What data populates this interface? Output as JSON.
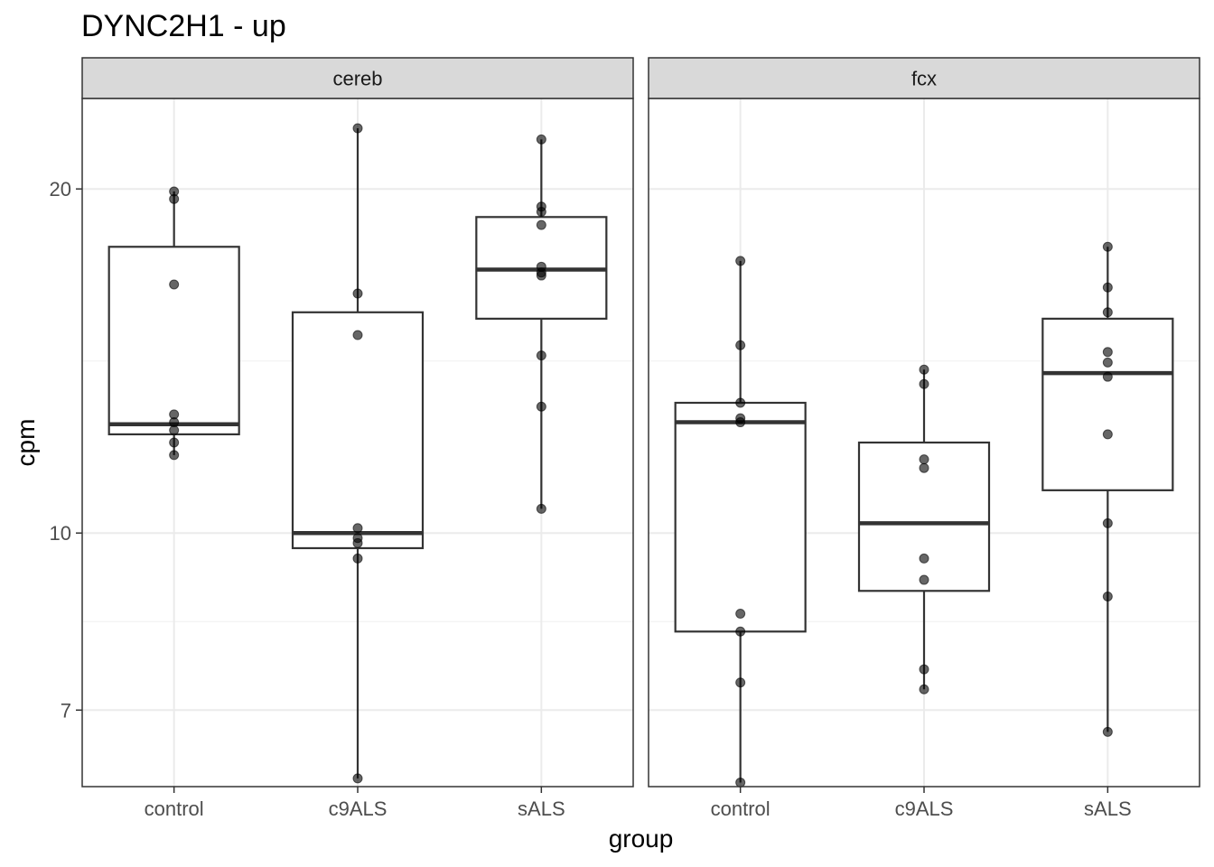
{
  "chart_data": {
    "type": "boxplot",
    "title": "DYNC2H1 - up",
    "xlabel": "group",
    "ylabel": "cpm",
    "y_scale": "log10",
    "ylim": [
      6.0,
      24.0
    ],
    "y_major_ticks": [
      7,
      10,
      20
    ],
    "y_minor_ticks": [
      8.3666,
      14.1421
    ],
    "categories": [
      "control",
      "c9ALS",
      "sALS"
    ],
    "panels": [
      {
        "name": "cereb",
        "groups": [
          {
            "category": "control",
            "min": 11.7,
            "q1": 12.2,
            "median": 12.45,
            "q3": 17.8,
            "max": 19.9,
            "points": [
              19.9,
              19.6,
              16.5,
              12.7,
              12.5,
              12.3,
              12.0,
              11.7
            ]
          },
          {
            "category": "c9ALS",
            "min": 6.1,
            "q1": 9.7,
            "median": 10.0,
            "q3": 15.6,
            "max": 22.6,
            "points": [
              22.6,
              16.2,
              14.9,
              10.1,
              9.9,
              9.8,
              9.5,
              6.1
            ]
          },
          {
            "category": "sALS",
            "min": 10.5,
            "q1": 15.4,
            "median": 17.0,
            "q3": 18.9,
            "max": 22.1,
            "points": [
              22.1,
              19.3,
              19.1,
              18.6,
              17.1,
              16.9,
              16.8,
              14.3,
              12.9,
              10.5
            ]
          }
        ]
      },
      {
        "name": "fcx",
        "groups": [
          {
            "category": "control",
            "min": 6.05,
            "q1": 8.2,
            "median": 12.5,
            "q3": 13.0,
            "max": 17.3,
            "points": [
              17.3,
              14.6,
              13.0,
              12.6,
              12.5,
              8.5,
              8.2,
              7.4,
              6.05
            ]
          },
          {
            "category": "c9ALS",
            "min": 7.3,
            "q1": 8.9,
            "median": 10.2,
            "q3": 12.0,
            "max": 13.9,
            "points": [
              13.9,
              13.5,
              11.6,
              11.4,
              9.5,
              9.1,
              7.6,
              7.3
            ]
          },
          {
            "category": "sALS",
            "min": 6.7,
            "q1": 10.9,
            "median": 13.8,
            "q3": 15.4,
            "max": 17.8,
            "points": [
              17.8,
              16.4,
              15.6,
              14.4,
              14.1,
              13.7,
              12.2,
              10.2,
              8.8,
              6.7
            ]
          }
        ]
      }
    ]
  }
}
